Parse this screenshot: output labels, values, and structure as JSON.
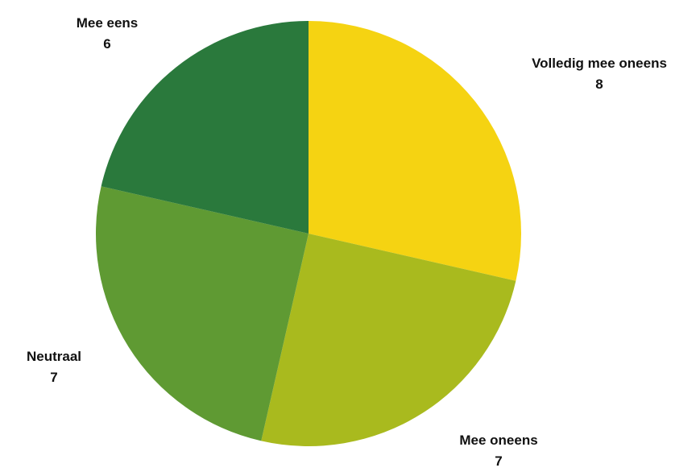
{
  "chart_data": {
    "type": "pie",
    "title": "",
    "categories": [
      "Volledig mee oneens",
      "Mee oneens",
      "Neutraal",
      "Mee eens"
    ],
    "values": [
      8,
      7,
      7,
      6
    ],
    "colors": [
      "#F5D312",
      "#A9BA1E",
      "#5F9A33",
      "#2A793C"
    ],
    "start_angle_deg": 0,
    "direction": "clockwise",
    "legend": "none",
    "slices": [
      {
        "label": "Volledig mee oneens",
        "value": "8",
        "color": "#F5D312"
      },
      {
        "label": "Mee oneens",
        "value": "7",
        "color": "#A9BA1E"
      },
      {
        "label": "Neutraal",
        "value": "7",
        "color": "#5F9A33"
      },
      {
        "label": "Mee eens",
        "value": "6",
        "color": "#2A793C"
      }
    ]
  }
}
